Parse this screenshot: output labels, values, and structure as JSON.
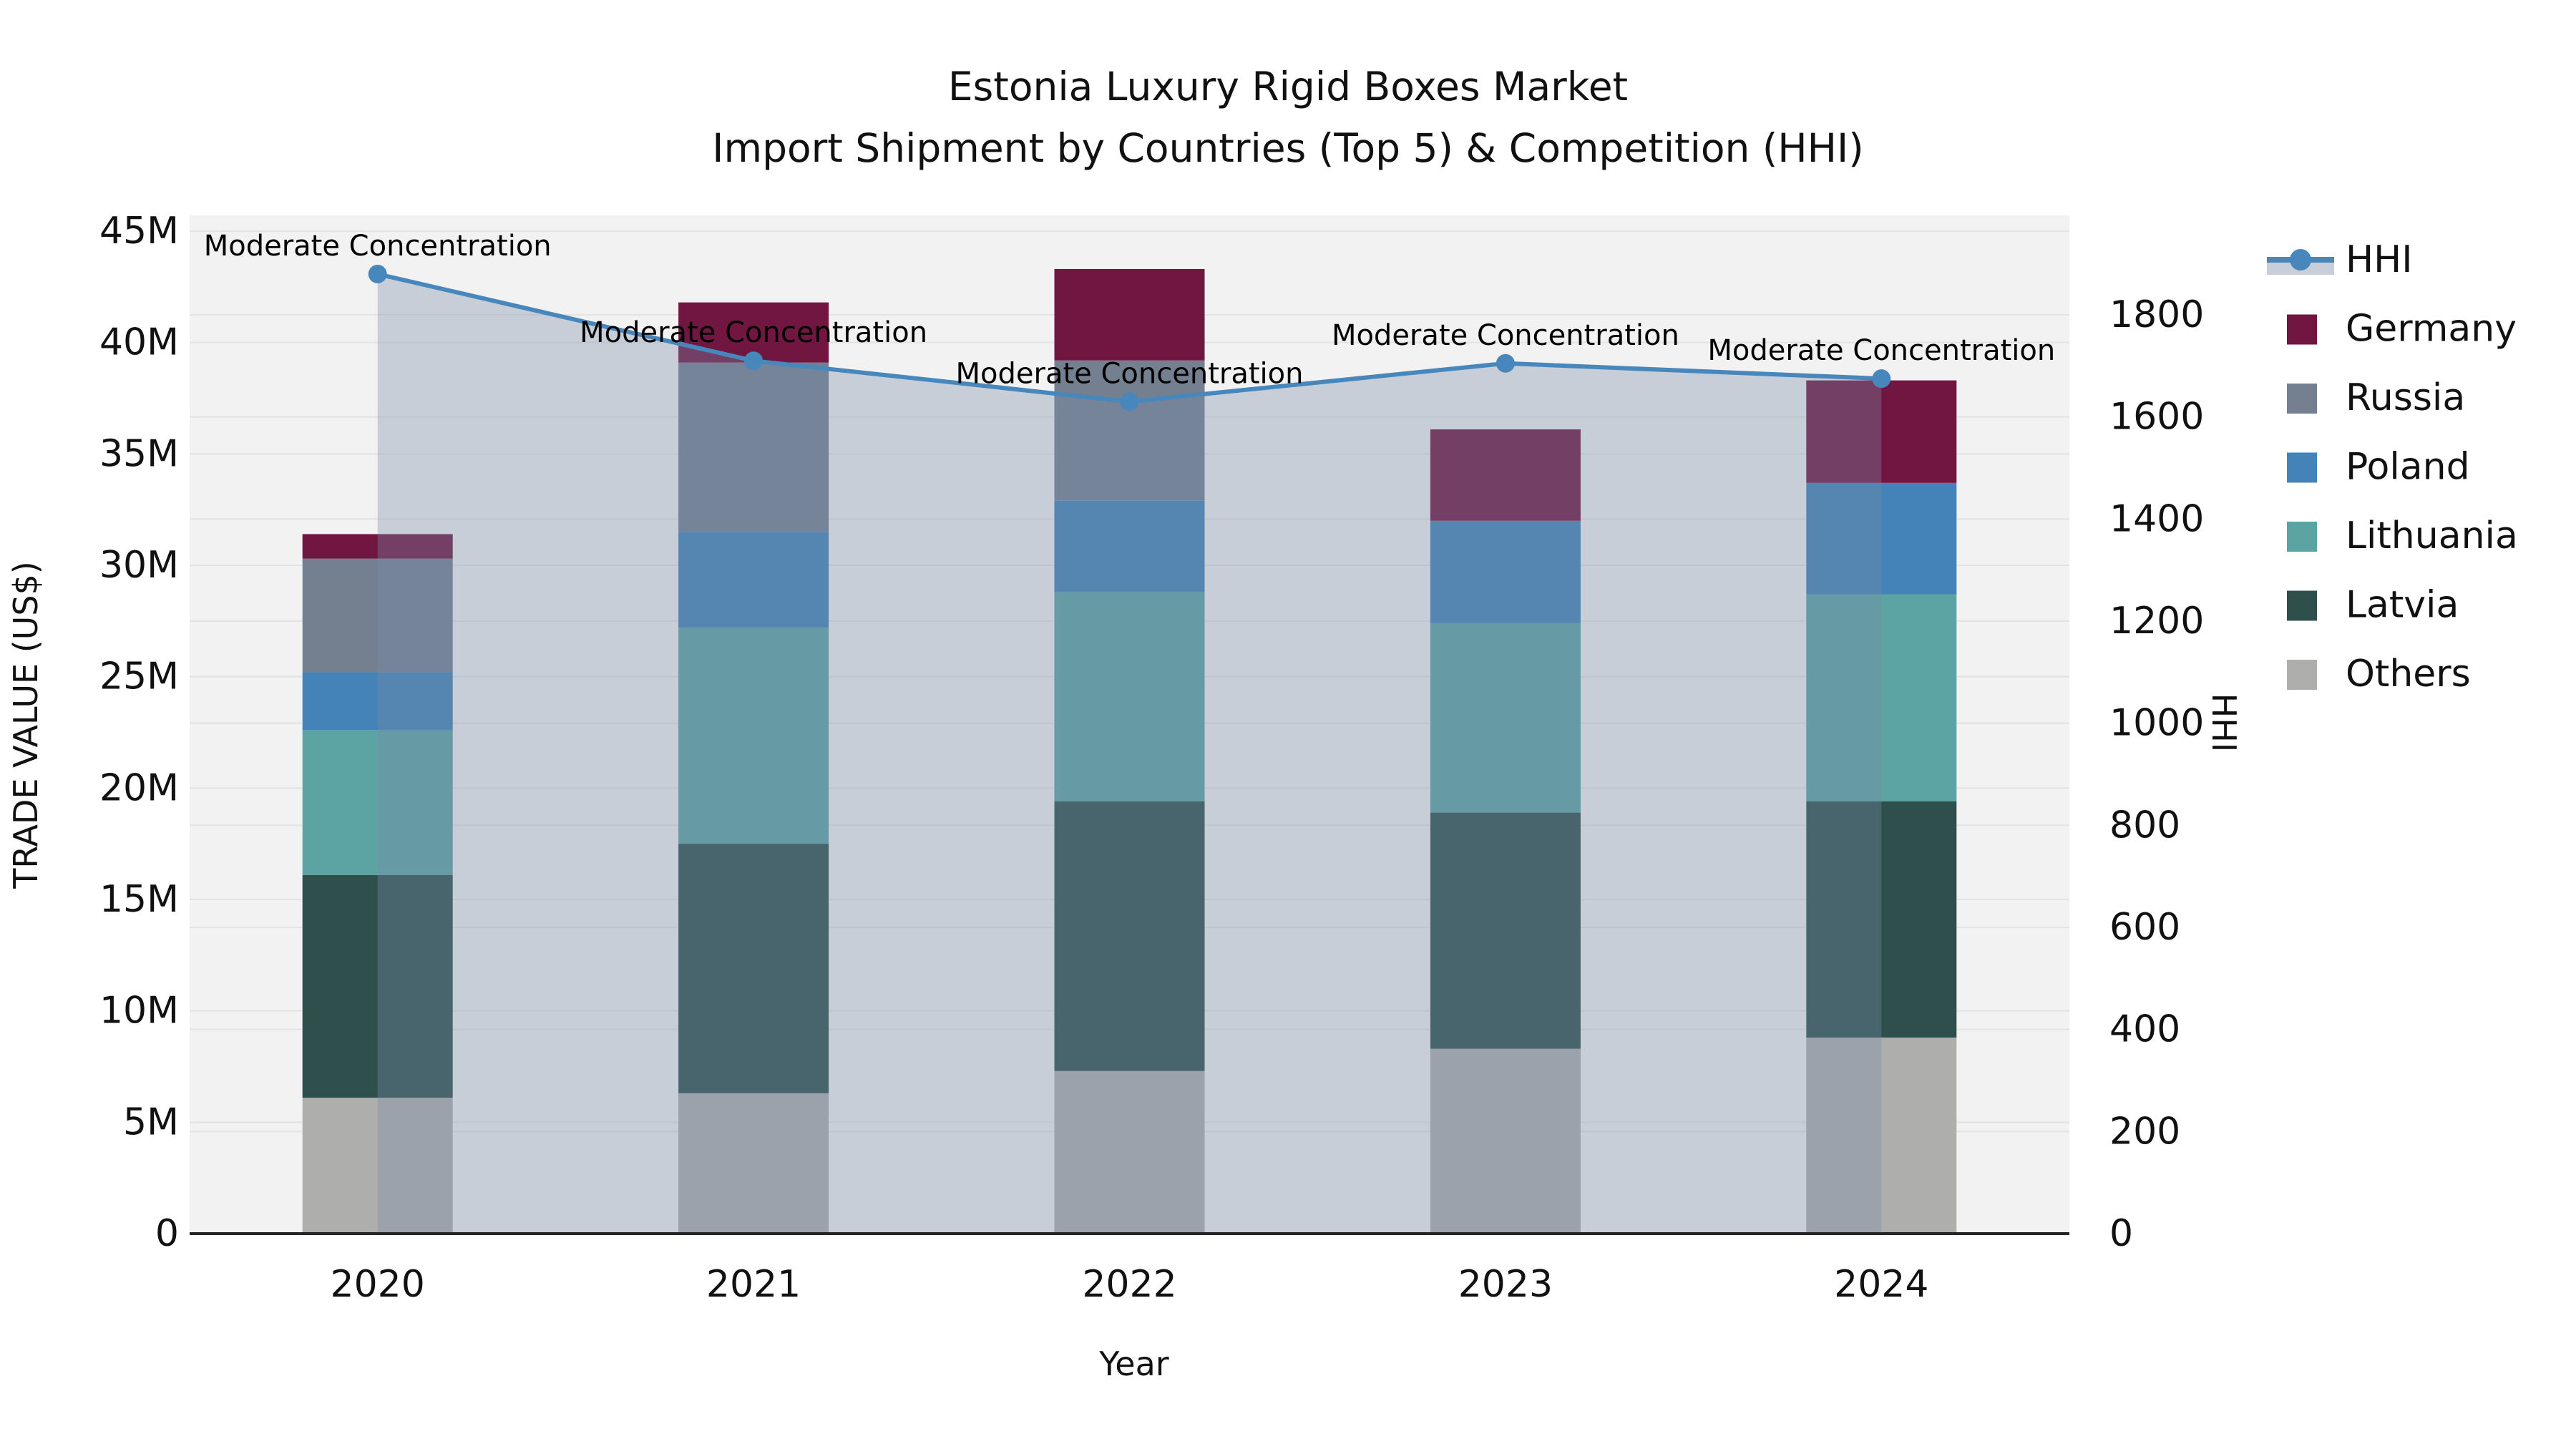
{
  "title": {
    "line1": "Estonia Luxury Rigid Boxes Market",
    "line2": "Import Shipment by Countries (Top 5) & Competition (HHI)"
  },
  "axes": {
    "x_label": "Year",
    "y_left_label": "TRADE VALUE (US$)",
    "y_right_label": "HHI",
    "x_ticks": [
      "2020",
      "2021",
      "2022",
      "2023",
      "2024"
    ],
    "y_left_ticks": [
      "0",
      "5M",
      "10M",
      "15M",
      "20M",
      "25M",
      "30M",
      "35M",
      "40M",
      "45M"
    ],
    "y_right_ticks": [
      "0",
      "200",
      "400",
      "600",
      "800",
      "1000",
      "1200",
      "1400",
      "1600",
      "1800"
    ]
  },
  "chart_data": {
    "type": "combo: stacked bar (trade value, left axis) + line with area fill (HHI, right axis)",
    "categories": [
      "2020",
      "2021",
      "2022",
      "2023",
      "2024"
    ],
    "x_axis_label": "Year",
    "y_left": {
      "label": "TRADE VALUE (US$)",
      "units": "million US$",
      "range": [
        0,
        45.7
      ],
      "tick_step": 5
    },
    "y_right": {
      "label": "HHI",
      "range": [
        0,
        1995
      ],
      "tick_step": 200
    },
    "grid": "horizontal gridlines for both axes",
    "legend_position": "right, outside plot",
    "series": [
      {
        "name": "Others",
        "color": "#aeaeac",
        "values": [
          6.1,
          6.3,
          7.3,
          8.3,
          8.8
        ]
      },
      {
        "name": "Latvia",
        "color": "#2f4f4d",
        "values": [
          10.0,
          11.2,
          12.1,
          10.6,
          10.6
        ]
      },
      {
        "name": "Lithuania",
        "color": "#5ca3a3",
        "values": [
          6.5,
          9.7,
          9.4,
          8.5,
          9.3
        ]
      },
      {
        "name": "Poland",
        "color": "#4383b7",
        "values": [
          2.6,
          4.3,
          4.1,
          4.6,
          5.0
        ]
      },
      {
        "name": "Russia",
        "color": "#74808f",
        "values": [
          5.1,
          7.6,
          6.3,
          0,
          0
        ]
      },
      {
        "name": "Germany",
        "color": "#701640",
        "values": [
          1.1,
          2.7,
          4.1,
          4.1,
          4.6
        ]
      }
    ],
    "bar_totals": [
      31.4,
      41.8,
      43.3,
      36.1,
      38.3
    ],
    "hhi": {
      "name": "HHI",
      "line_color": "#4787bc",
      "fill_color": "rgba(120,140,170,0.35)",
      "legend_band_color": "#c9cfd9",
      "values": [
        1880,
        1710,
        1630,
        1705,
        1675
      ]
    },
    "annotations": [
      {
        "x": "2020",
        "label": "Moderate Concentration"
      },
      {
        "x": "2021",
        "label": "Moderate Concentration"
      },
      {
        "x": "2022",
        "label": "Moderate Concentration"
      },
      {
        "x": "2023",
        "label": "Moderate Concentration"
      },
      {
        "x": "2024",
        "label": "Moderate Concentration"
      }
    ],
    "legend_order": [
      "HHI",
      "Germany",
      "Russia",
      "Poland",
      "Lithuania",
      "Latvia",
      "Others"
    ]
  },
  "style_colors": {
    "plot_background": "#f2f2f2",
    "figure_background": "#ffffff",
    "gridline": "#e3e3e5",
    "axis_spine": "#262626",
    "text": "#111111"
  }
}
